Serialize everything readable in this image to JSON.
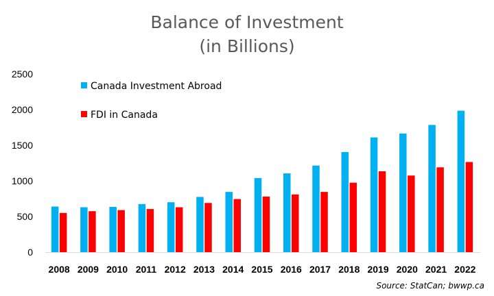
{
  "chart_data": {
    "type": "bar",
    "title": [
      "Balance of Investment",
      "(in Billions)"
    ],
    "categories": [
      "2008",
      "2009",
      "2010",
      "2011",
      "2012",
      "2013",
      "2014",
      "2015",
      "2016",
      "2017",
      "2018",
      "2019",
      "2020",
      "2021",
      "2022"
    ],
    "series": [
      {
        "name": "Canada Investment Abroad",
        "color": "#00B0F0",
        "values": [
          640,
          630,
          635,
          675,
          700,
          775,
          845,
          1040,
          1105,
          1215,
          1405,
          1610,
          1665,
          1785,
          1985
        ]
      },
      {
        "name": "FDI in Canada",
        "color": "#FF0000",
        "values": [
          550,
          575,
          590,
          605,
          630,
          690,
          745,
          780,
          810,
          845,
          975,
          1135,
          1075,
          1190,
          1265
        ]
      }
    ],
    "ylim": [
      0,
      2500
    ],
    "yticks": [
      0,
      500,
      1000,
      1500,
      2000,
      2500
    ],
    "legend_position": "top-left",
    "source": "Source: StatCan; bwwp.ca"
  }
}
